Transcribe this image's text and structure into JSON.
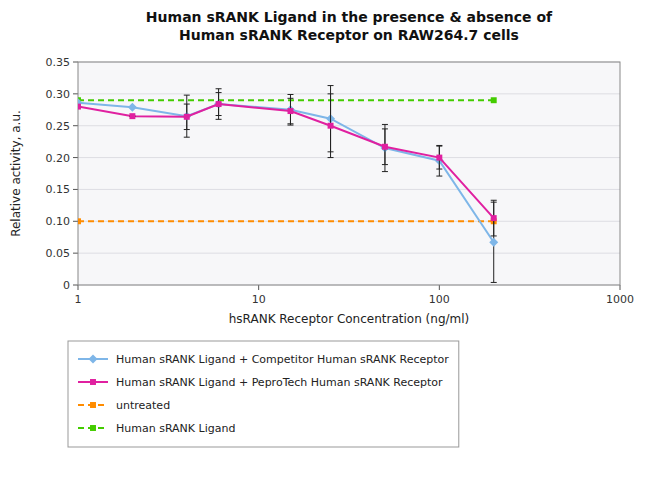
{
  "chart_data": {
    "type": "line",
    "title": "Human sRANK Ligand in the presence & absence of\nHuman sRANK Receptor on RAW264.7 cells",
    "x_label": "hsRANK Receptor Concentration (ng/ml)",
    "y_label": "Relative activity, a.u.",
    "log": "x",
    "xlim": [
      1,
      1000
    ],
    "xticks": [
      1,
      10,
      100,
      1000
    ],
    "ylim": [
      0,
      0.35
    ],
    "yticks": [
      0,
      0.05,
      {
        "value": 0.1,
        "label": "0.10"
      },
      0.15,
      {
        "value": 0.2,
        "label": "0.20"
      },
      0.25,
      {
        "value": 0.3,
        "label": "0.30"
      },
      0.35
    ],
    "grid": true,
    "legend": "bottom",
    "series": [
      {
        "name": "Human sRANK Ligand + Competitor Human sRANK Receptor",
        "color": "#7eb6e8",
        "marker": "diamond",
        "line_style": "solid",
        "x": [
          1,
          2,
          4,
          6,
          15,
          25,
          50,
          100,
          200
        ],
        "values": [
          0.286,
          0.279,
          0.265,
          0.284,
          0.275,
          0.261,
          0.215,
          0.195,
          0.067
        ],
        "errors": [
          0.0,
          0.0,
          0.033,
          0.018,
          0.024,
          0.052,
          0.037,
          0.024,
          0.063
        ]
      },
      {
        "name": "Human sRANK Ligand + PeproTech Human sRANK Receptor",
        "color": "#e020a0",
        "marker": "square",
        "line_style": "solid",
        "x": [
          1,
          2,
          4,
          6,
          15,
          25,
          50,
          100,
          200
        ],
        "values": [
          0.28,
          0.265,
          0.264,
          0.284,
          0.273,
          0.25,
          0.217,
          0.2,
          0.105
        ],
        "errors": [
          0.0,
          0.0,
          0.02,
          0.024,
          0.02,
          0.05,
          0.028,
          0.018,
          0.028
        ]
      },
      {
        "name": "untreated",
        "color": "#ff8c00",
        "marker": "square",
        "line_style": "dashed",
        "x": [
          1,
          200
        ],
        "values": [
          0.1,
          0.1
        ]
      },
      {
        "name": "Human sRANK Ligand",
        "color": "#44cc00",
        "marker": "square",
        "line_style": "dashed",
        "x": [
          1,
          200
        ],
        "values": [
          0.29,
          0.29
        ]
      }
    ]
  }
}
